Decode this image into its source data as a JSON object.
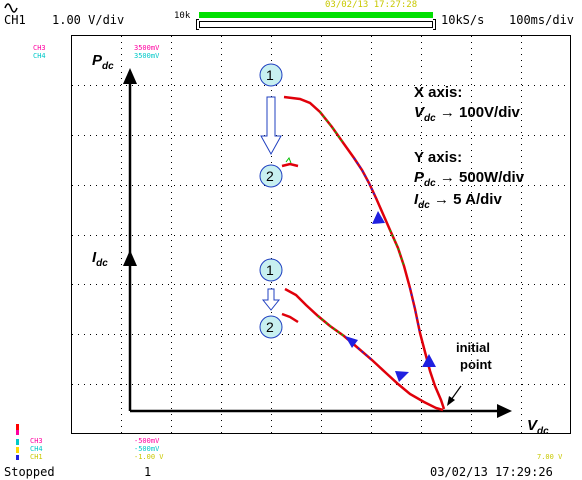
{
  "header": {
    "channel": "CH1",
    "volts_per_div": "1.00 V/div",
    "memory_length": "10k",
    "trigger_time": "03/02/13 17:27:28",
    "sample_rate": "10kS/s",
    "time_per_div": "100ms/div"
  },
  "left_scale": {
    "top_ch3": {
      "label": "CH3",
      "value": "3500mV"
    },
    "top_ch4": {
      "label": "CH4",
      "value": "3500mV"
    },
    "bot_ch3": {
      "label": "CH3",
      "value": "-500mV"
    },
    "bot_ch4": {
      "label": "CH4",
      "value": "-500mV"
    },
    "bot_ch1": {
      "label": "CH1",
      "value": "-1.00 V"
    },
    "x_end_value": "7.00 V"
  },
  "footer": {
    "status": "Stopped",
    "page": "1",
    "timestamp": "03/02/13 17:29:26"
  },
  "annotations": {
    "pdc": {
      "main": "P",
      "sub": "dc"
    },
    "idc": {
      "main": "I",
      "sub": "dc"
    },
    "vdc": {
      "main": "V",
      "sub": "dc"
    },
    "marker_1": "1",
    "marker_2": "2",
    "x_axis_title": "X axis:",
    "x_axis_scale": "→ 100V/div",
    "y_axis_title": "Y axis:",
    "y_axis_p_scale": "→ 500W/div",
    "y_axis_i_scale": "→ 5 A/div",
    "initial_1": "initial",
    "initial_2": "point"
  },
  "colors": {
    "ch1": "#ffd700",
    "ch3": "#ff00a0",
    "ch4": "#00c8c8",
    "trace_red": "#e0000a",
    "trace_green": "#00c000",
    "trace_blue": "#2020e0",
    "marker_fill": "#c8f0f0",
    "marker_stroke": "#2040c0",
    "progress_green": "#00e000"
  },
  "icons": {
    "ac_coupling": "ac-coupling-icon",
    "down_arrow": "down-arrow-icon",
    "direction_arrow": "direction-arrow-icon"
  }
}
